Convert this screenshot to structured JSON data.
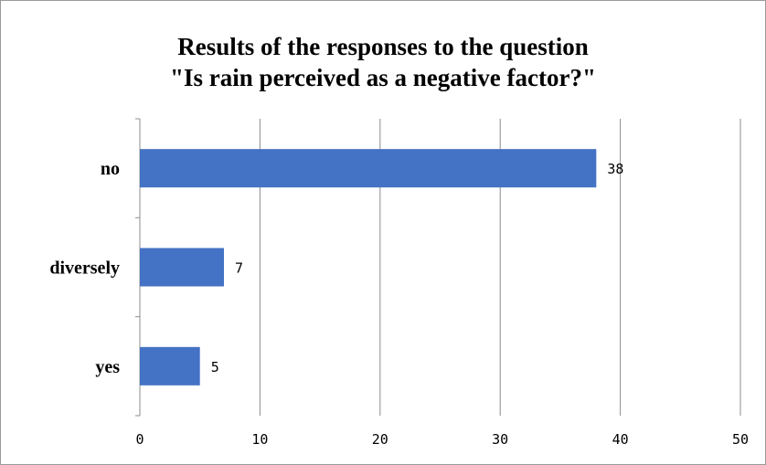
{
  "chart_data": {
    "type": "bar",
    "orientation": "horizontal",
    "title_lines": [
      "Results of the responses to the question",
      "\"Is rain perceived as a negative factor?\""
    ],
    "categories": [
      "no",
      "diversely",
      "yes"
    ],
    "values": [
      38,
      7,
      5
    ],
    "data_labels": [
      "38",
      "7",
      "5"
    ],
    "xlim": [
      0,
      50
    ],
    "x_ticks": [
      0,
      10,
      20,
      30,
      40,
      50
    ],
    "x_tick_labels": [
      "0",
      "10",
      "20",
      "30",
      "40",
      "50"
    ],
    "xlabel": "",
    "ylabel": "",
    "grid": "vertical",
    "legend": "none",
    "colors": {
      "bar": "#4472c4",
      "grid": "#8c8c8c",
      "axis": "#8c8c8c"
    }
  }
}
